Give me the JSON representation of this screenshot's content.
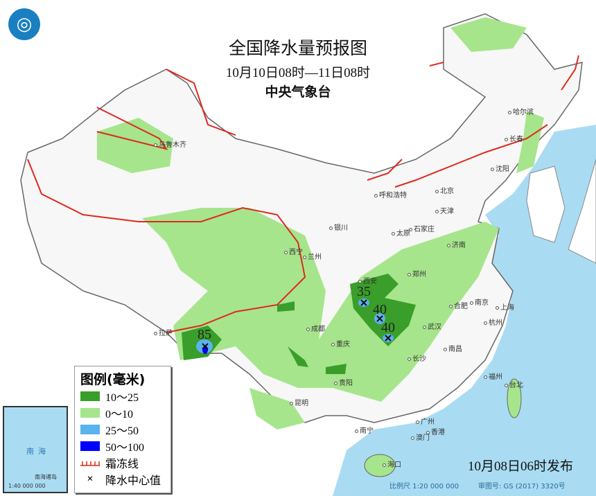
{
  "header": {
    "title": "全国降水量预报图",
    "period": "10月10日08时—11日08时",
    "issuer": "中央气象台"
  },
  "colors": {
    "rain_0_10": "#a6e58c",
    "rain_10_25": "#3a9e2a",
    "rain_25_50": "#5ab2ee",
    "rain_50_100": "#0000ff",
    "frost_line": "#e0281e",
    "sea": "#a9dcf2"
  },
  "legend": {
    "title": "图例(毫米)",
    "items": [
      {
        "label": "10～25",
        "color": "#3a9e2a"
      },
      {
        "label": "0～10",
        "color": "#a6e58c"
      },
      {
        "label": "25～50",
        "color": "#5ab2ee"
      },
      {
        "label": "50～100",
        "color": "#0000ff"
      },
      {
        "label": "霜冻线",
        "icon": "frost-line-icon"
      },
      {
        "label": "降水中心值",
        "icon": "cross-icon"
      }
    ]
  },
  "cities": [
    "乌鲁木齐",
    "哈尔滨",
    "长春",
    "沈阳",
    "呼和浩特",
    "北京",
    "天津",
    "石家庄",
    "太原",
    "银川",
    "西宁",
    "兰州",
    "济南",
    "郑州",
    "西安",
    "合肥",
    "南京",
    "上海",
    "杭州",
    "成都",
    "武汉",
    "重庆",
    "长沙",
    "南昌",
    "福州",
    "台北",
    "贵阳",
    "昆明",
    "南宁",
    "广州",
    "香港",
    "澳门",
    "海口",
    "拉萨"
  ],
  "rain_centers": [
    "35",
    "40",
    "40",
    "85"
  ],
  "inset": {
    "sea_label": "南海",
    "scale": "1:40 000 000",
    "title": "南海诸岛"
  },
  "footer": {
    "published": "10月08日06时发布",
    "scale": "比例尺 1:20 000 000",
    "review_no": "审图号: GS (2017) 3320号"
  }
}
